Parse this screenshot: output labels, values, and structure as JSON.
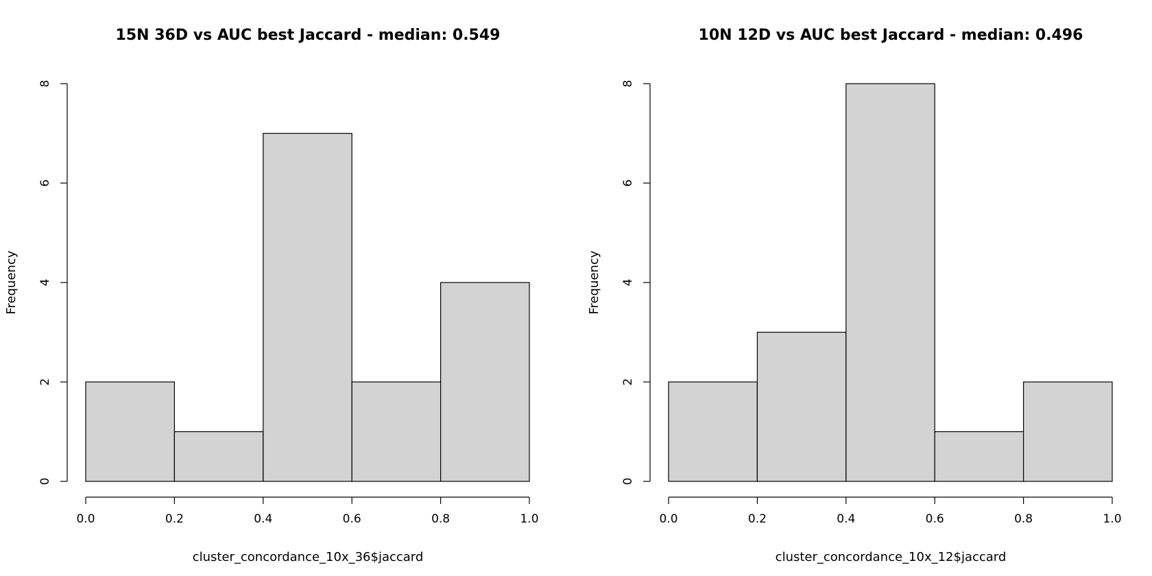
{
  "chart_data": [
    {
      "type": "bar",
      "title": "15N 36D vs AUC best Jaccard - median: 0.549",
      "xlabel": "cluster_concordance_10x_36$jaccard",
      "ylabel": "Frequency",
      "bin_edges": [
        0.0,
        0.2,
        0.4,
        0.6,
        0.8,
        1.0
      ],
      "values": [
        2,
        1,
        7,
        2,
        4
      ],
      "xlim": [
        0.0,
        1.0
      ],
      "ylim": [
        0,
        8
      ],
      "x_ticks": [
        "0.0",
        "0.2",
        "0.4",
        "0.6",
        "0.8",
        "1.0"
      ],
      "y_ticks": [
        "0",
        "2",
        "4",
        "6",
        "8"
      ],
      "bar_color": "#d3d3d3",
      "grid": false
    },
    {
      "type": "bar",
      "title": "10N 12D vs AUC best Jaccard - median: 0.496",
      "xlabel": "cluster_concordance_10x_12$jaccard",
      "ylabel": "Frequency",
      "bin_edges": [
        0.0,
        0.2,
        0.4,
        0.6,
        0.8,
        1.0
      ],
      "values": [
        2,
        3,
        8,
        1,
        2
      ],
      "xlim": [
        0.0,
        1.0
      ],
      "ylim": [
        0,
        8
      ],
      "x_ticks": [
        "0.0",
        "0.2",
        "0.4",
        "0.6",
        "0.8",
        "1.0"
      ],
      "y_ticks": [
        "0",
        "2",
        "4",
        "6",
        "8"
      ],
      "bar_color": "#d3d3d3",
      "grid": false
    }
  ]
}
